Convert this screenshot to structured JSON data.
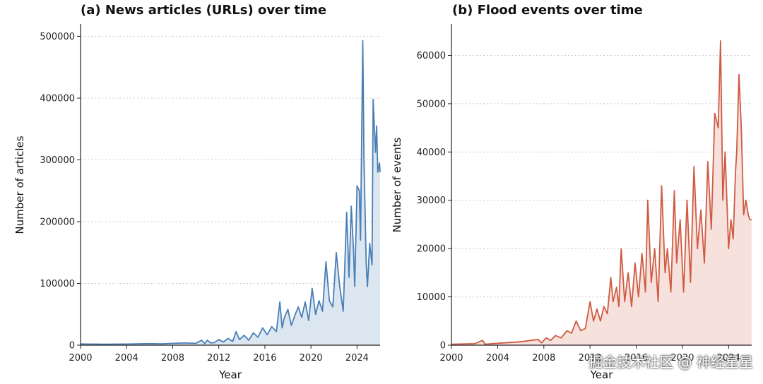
{
  "chart_data": [
    {
      "type": "area",
      "title": "(a)  News articles (URLs) over time",
      "xlabel": "Year",
      "ylabel": "Number of articles",
      "xlim": [
        2000,
        2026
      ],
      "ylim": [
        0,
        520000
      ],
      "x_ticks": [
        2000,
        2004,
        2008,
        2012,
        2016,
        2020,
        2024
      ],
      "y_ticks": [
        0,
        100000,
        200000,
        300000,
        400000,
        500000
      ],
      "grid": "y-dotted",
      "line_color": "#4a7fb5",
      "fill_color": "#dbe6f1",
      "series": [
        {
          "x": [
            2000,
            2002,
            2004,
            2006,
            2007,
            2008,
            2009,
            2010,
            2010.5,
            2010.8,
            2011,
            2011.3,
            2011.6,
            2012,
            2012.4,
            2012.8,
            2013.2,
            2013.5,
            2013.8,
            2014.2,
            2014.6,
            2015,
            2015.4,
            2015.8,
            2016.2,
            2016.6,
            2017,
            2017.3,
            2017.5,
            2017.7,
            2018,
            2018.3,
            2018.6,
            2018.9,
            2019.2,
            2019.5,
            2019.8,
            2020.1,
            2020.4,
            2020.7,
            2021,
            2021.3,
            2021.6,
            2021.9,
            2022.2,
            2022.5,
            2022.8,
            2023.1,
            2023.3,
            2023.5,
            2023.7,
            2023.8,
            2024,
            2024.2,
            2024.3,
            2024.5,
            2024.6,
            2024.8,
            2024.9,
            2025.1,
            2025.3,
            2025.4,
            2025.6,
            2025.7,
            2025.8,
            2025.95,
            2026
          ],
          "y": [
            2000,
            1500,
            1800,
            2500,
            2200,
            3000,
            3500,
            3000,
            8000,
            2500,
            8000,
            3500,
            4000,
            9000,
            5000,
            11000,
            6000,
            22000,
            9000,
            16000,
            8000,
            20000,
            13000,
            28000,
            17000,
            30000,
            22000,
            70000,
            28000,
            45000,
            58000,
            32000,
            48000,
            62000,
            45000,
            70000,
            40000,
            92000,
            50000,
            72000,
            55000,
            135000,
            72000,
            62000,
            150000,
            95000,
            55000,
            215000,
            110000,
            225000,
            150000,
            95000,
            258000,
            250000,
            170000,
            493000,
            300000,
            130000,
            95000,
            165000,
            130000,
            398000,
            312000,
            355000,
            280000,
            295000,
            280000
          ]
        }
      ]
    },
    {
      "type": "area",
      "title": "(b)  Flood events over time",
      "xlabel": "Year",
      "ylabel": "Number of events",
      "xlim": [
        2000,
        2026
      ],
      "ylim": [
        0,
        66500
      ],
      "x_ticks": [
        2000,
        2004,
        2008,
        2012,
        2016,
        2020,
        2024
      ],
      "y_ticks": [
        0,
        10000,
        20000,
        30000,
        40000,
        50000,
        60000
      ],
      "grid": "y-dotted",
      "line_color": "#cf5b43",
      "fill_color": "#f7e1dc",
      "series": [
        {
          "x": [
            2000,
            2002,
            2002.7,
            2002.9,
            2004,
            2006,
            2007.5,
            2007.8,
            2008.2,
            2008.6,
            2009,
            2009.5,
            2010,
            2010.4,
            2010.8,
            2011.2,
            2011.6,
            2012,
            2012.3,
            2012.6,
            2012.9,
            2013.2,
            2013.5,
            2013.8,
            2014,
            2014.3,
            2014.5,
            2014.7,
            2015,
            2015.3,
            2015.6,
            2015.9,
            2016.2,
            2016.5,
            2016.8,
            2017,
            2017.3,
            2017.6,
            2017.9,
            2018.2,
            2018.5,
            2018.7,
            2019,
            2019.3,
            2019.5,
            2019.8,
            2020.1,
            2020.4,
            2020.7,
            2021,
            2021.3,
            2021.6,
            2021.9,
            2022.2,
            2022.5,
            2022.8,
            2023.1,
            2023.3,
            2023.5,
            2023.7,
            2024,
            2024.2,
            2024.4,
            2024.6,
            2024.7,
            2024.9,
            2025.1,
            2025.3,
            2025.5,
            2025.7,
            2025.85,
            2026
          ],
          "y": [
            200,
            300,
            1000,
            200,
            400,
            700,
            1200,
            500,
            1500,
            1000,
            2000,
            1500,
            3000,
            2500,
            5000,
            3000,
            3500,
            9000,
            5000,
            7500,
            5000,
            8000,
            6500,
            14000,
            9000,
            12000,
            8000,
            20000,
            9000,
            15000,
            8000,
            17000,
            10000,
            19000,
            11000,
            30000,
            13000,
            20000,
            9000,
            33000,
            15000,
            20000,
            11000,
            32000,
            17000,
            26000,
            11000,
            30000,
            13000,
            37000,
            20000,
            28000,
            17000,
            38000,
            24000,
            48000,
            45000,
            63000,
            30000,
            40000,
            20000,
            26000,
            22000,
            36000,
            40000,
            56000,
            45000,
            27000,
            30000,
            27000,
            26000,
            26000
          ]
        }
      ]
    }
  ],
  "watermark": "掘金技术社区 @ 神经星星"
}
